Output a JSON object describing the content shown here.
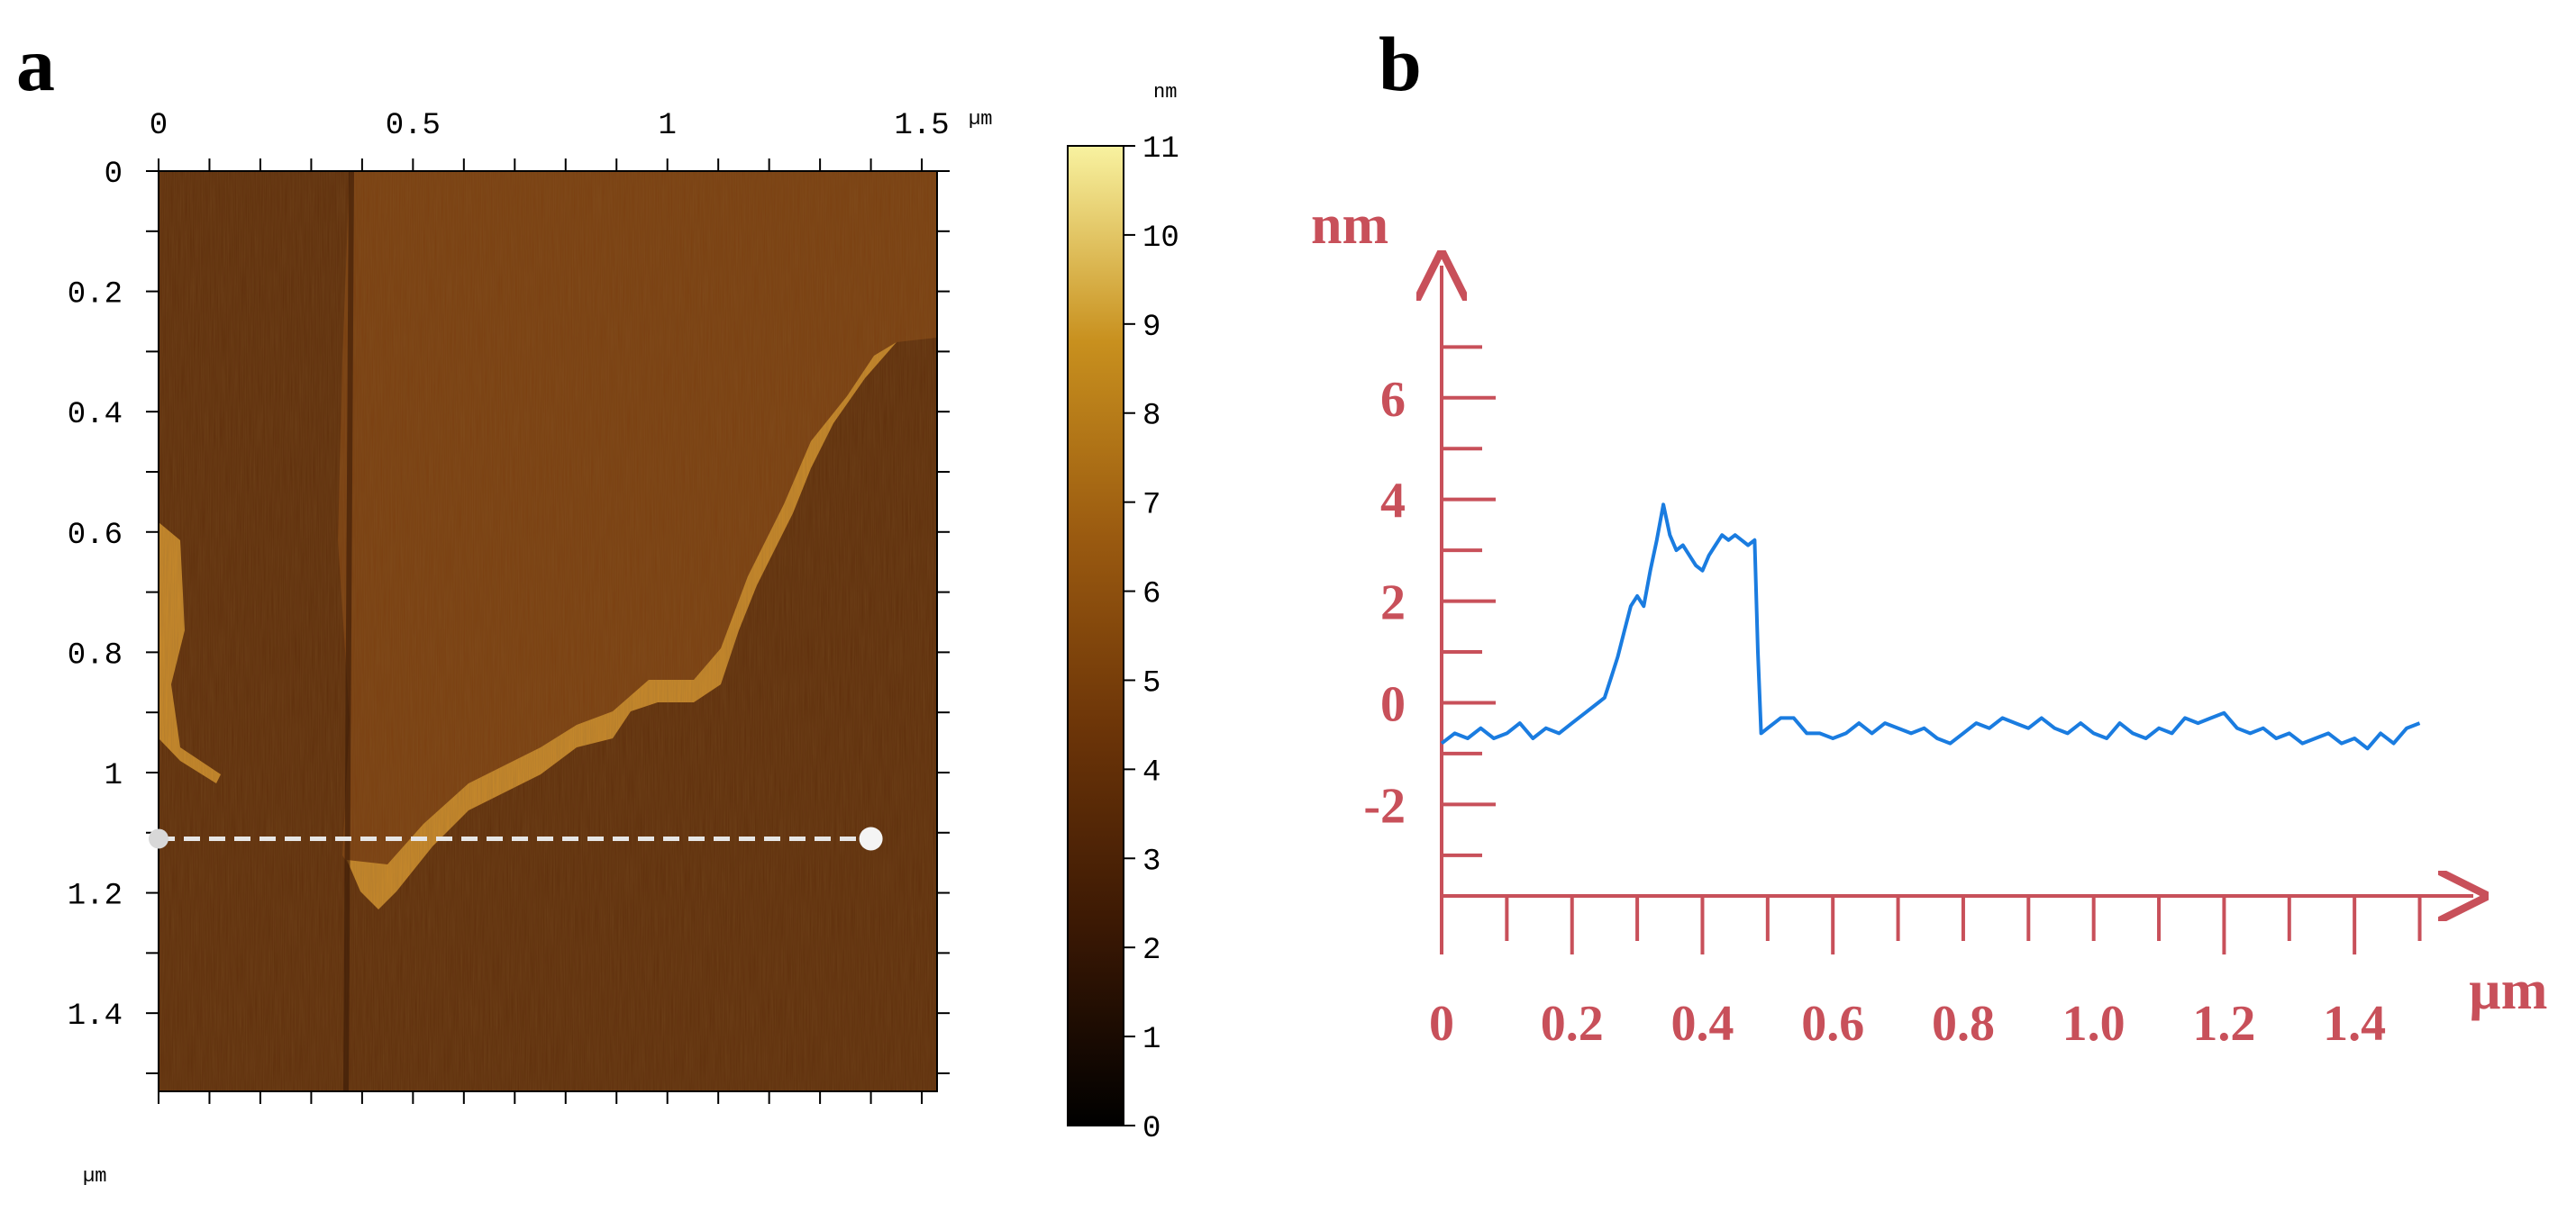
{
  "panels": {
    "a": "a",
    "b": "b"
  },
  "chart_data": [
    {
      "type": "heatmap",
      "panel": "a",
      "x_ticks": [
        "0",
        "0.5",
        "1",
        "1.5"
      ],
      "x_tick_values": [
        0,
        0.5,
        1,
        1.5
      ],
      "x_unit": "µm",
      "y_ticks": [
        "0",
        "0.2",
        "0.4",
        "0.6",
        "0.8",
        "1",
        "1.2",
        "1.4"
      ],
      "y_tick_values": [
        0,
        0.2,
        0.4,
        0.6,
        0.8,
        1.0,
        1.2,
        1.4
      ],
      "y_unit": "µm",
      "xlim": [
        0,
        1.53
      ],
      "ylim": [
        0,
        1.53
      ],
      "colorbar": {
        "unit": "nm",
        "ticks": [
          "11",
          "10",
          "9",
          "8",
          "7",
          "6",
          "5",
          "4",
          "3",
          "2",
          "1",
          "0"
        ],
        "range": [
          0,
          11
        ],
        "colors": [
          "#000000",
          "#3a1804",
          "#6b3408",
          "#9a5a10",
          "#c8901e",
          "#f8f2a0"
        ]
      },
      "profile_line": {
        "x_start": 0,
        "x_end": 1.4,
        "y": 1.11,
        "style": "dashed"
      },
      "colors": {
        "substrate": "#5e2e0b",
        "flake": "#7a3f10",
        "edge": "#c98a2a",
        "line": "#e6e6e6"
      }
    },
    {
      "type": "line",
      "panel": "b",
      "ylabel_unit": "nm",
      "xlabel_unit": "µm",
      "x_ticks": [
        "0",
        "0.2",
        "0.4",
        "0.6",
        "0.8",
        "1.0",
        "1.2",
        "1.4"
      ],
      "x_tick_values": [
        0,
        0.2,
        0.4,
        0.6,
        0.8,
        1.0,
        1.2,
        1.4
      ],
      "y_ticks": [
        "6",
        "4",
        "2",
        "0",
        "-2"
      ],
      "y_tick_values": [
        6,
        4,
        2,
        0,
        -2
      ],
      "xlim": [
        0,
        1.52
      ],
      "ylim": [
        -3.8,
        8.6
      ],
      "axis_color": "#c8505a",
      "series": [
        {
          "color": "#1a7ce0",
          "x": [
            0.0,
            0.02,
            0.04,
            0.06,
            0.08,
            0.1,
            0.12,
            0.14,
            0.16,
            0.18,
            0.2,
            0.22,
            0.24,
            0.25,
            0.26,
            0.27,
            0.28,
            0.29,
            0.3,
            0.31,
            0.32,
            0.33,
            0.34,
            0.35,
            0.36,
            0.37,
            0.38,
            0.39,
            0.4,
            0.41,
            0.42,
            0.43,
            0.44,
            0.45,
            0.46,
            0.47,
            0.48,
            0.485,
            0.49,
            0.5,
            0.52,
            0.54,
            0.56,
            0.58,
            0.6,
            0.62,
            0.64,
            0.66,
            0.68,
            0.7,
            0.72,
            0.74,
            0.76,
            0.78,
            0.8,
            0.82,
            0.84,
            0.86,
            0.88,
            0.9,
            0.92,
            0.94,
            0.96,
            0.98,
            1.0,
            1.02,
            1.04,
            1.06,
            1.08,
            1.1,
            1.12,
            1.14,
            1.16,
            1.18,
            1.2,
            1.22,
            1.24,
            1.26,
            1.28,
            1.3,
            1.32,
            1.34,
            1.36,
            1.38,
            1.4,
            1.42,
            1.44,
            1.46,
            1.48,
            1.5
          ],
          "y": [
            -0.8,
            -0.6,
            -0.7,
            -0.5,
            -0.7,
            -0.6,
            -0.4,
            -0.7,
            -0.5,
            -0.6,
            -0.4,
            -0.2,
            0.0,
            0.1,
            0.5,
            0.9,
            1.4,
            1.9,
            2.1,
            1.9,
            2.6,
            3.2,
            3.9,
            3.3,
            3.0,
            3.1,
            2.9,
            2.7,
            2.6,
            2.9,
            3.1,
            3.3,
            3.2,
            3.3,
            3.2,
            3.1,
            3.2,
            1.0,
            -0.6,
            -0.5,
            -0.3,
            -0.3,
            -0.6,
            -0.6,
            -0.7,
            -0.6,
            -0.4,
            -0.6,
            -0.4,
            -0.5,
            -0.6,
            -0.5,
            -0.7,
            -0.8,
            -0.6,
            -0.4,
            -0.5,
            -0.3,
            -0.4,
            -0.5,
            -0.3,
            -0.5,
            -0.6,
            -0.4,
            -0.6,
            -0.7,
            -0.4,
            -0.6,
            -0.7,
            -0.5,
            -0.6,
            -0.3,
            -0.4,
            -0.3,
            -0.2,
            -0.5,
            -0.6,
            -0.5,
            -0.7,
            -0.6,
            -0.8,
            -0.7,
            -0.6,
            -0.8,
            -0.7,
            -0.9,
            -0.6,
            -0.8,
            -0.5,
            -0.4
          ]
        }
      ]
    }
  ]
}
